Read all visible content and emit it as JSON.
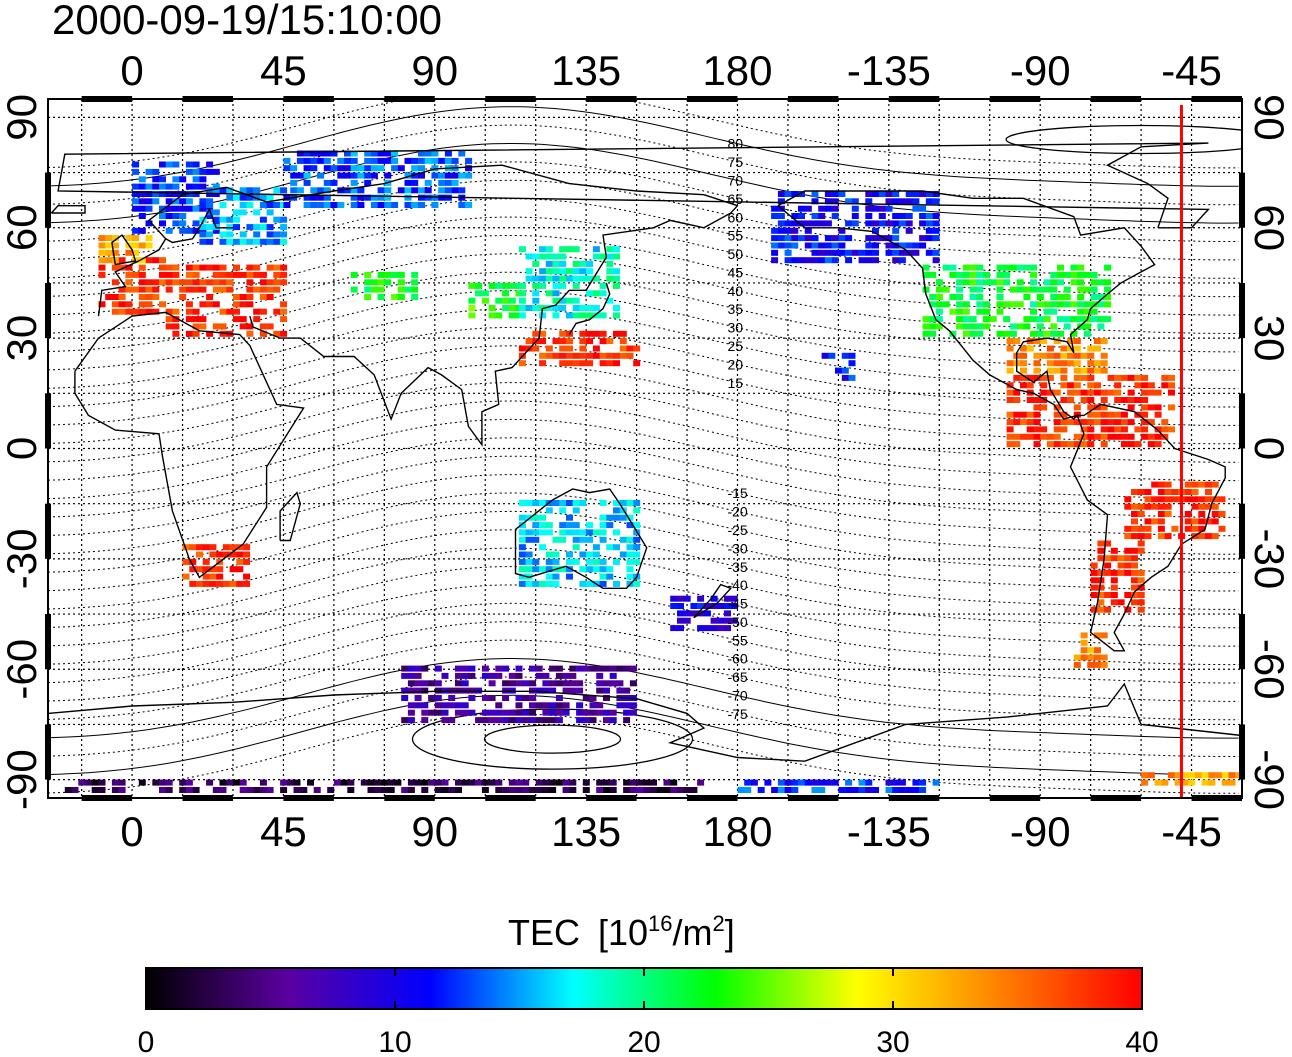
{
  "timestamp": "2000-09-19/15:10:00",
  "axes": {
    "lon_tick_labels": [
      "0",
      "45",
      "90",
      "135",
      "180",
      "-135",
      "-90",
      "-45"
    ],
    "lat_tick_labels": [
      "90",
      "60",
      "30",
      "0",
      "-30",
      "-60",
      "-90"
    ],
    "lon_range": [
      -25,
      330
    ],
    "lat_range": [
      -95,
      95
    ],
    "grid": true
  },
  "magnetic_latitude_labels": [
    "80",
    "75",
    "70",
    "65",
    "60",
    "55",
    "50",
    "45",
    "40",
    "35",
    "30",
    "25",
    "20",
    "15",
    "-15",
    "-20",
    "-25",
    "-30",
    "-35",
    "-40",
    "-45",
    "-50",
    "-55",
    "-60",
    "-65",
    "-70",
    "-75"
  ],
  "terminator_longitude": -48,
  "colorbar": {
    "title": "TEC",
    "unit_prefix": "[10",
    "unit_exp1": "16",
    "unit_mid": "/m",
    "unit_exp2": "2",
    "unit_suffix": "]",
    "min": 0,
    "max": 40,
    "tick_labels": [
      "0",
      "10",
      "20",
      "30",
      "40"
    ],
    "colors": [
      "#000000",
      "#5a00a0",
      "#0000ff",
      "#00ffff",
      "#00ff00",
      "#ffff00",
      "#ff8000",
      "#ff0000"
    ]
  },
  "chart_data": {
    "type": "heatmap",
    "title": "2000-09-19/15:10:00",
    "xlabel": "",
    "ylabel": "",
    "xlim": [
      -25,
      330
    ],
    "ylim": [
      -95,
      95
    ],
    "colorbar_label": "TEC [10^16/m^2]",
    "series": [
      {
        "lon": [
          -10,
          10
        ],
        "lat": [
          36,
          52
        ],
        "tec": 38
      },
      {
        "lon": [
          10,
          45
        ],
        "lat": [
          30,
          50
        ],
        "tec": 38
      },
      {
        "lon": [
          -10,
          5
        ],
        "lat": [
          50,
          58
        ],
        "tec": 33
      },
      {
        "lon": [
          0,
          25
        ],
        "lat": [
          58,
          78
        ],
        "tec": 12
      },
      {
        "lon": [
          20,
          45
        ],
        "lat": [
          55,
          70
        ],
        "tec": 15
      },
      {
        "lon": [
          45,
          100
        ],
        "lat": [
          65,
          80
        ],
        "tec": 13
      },
      {
        "lon": [
          65,
          85
        ],
        "lat": [
          40,
          48
        ],
        "tec": 23
      },
      {
        "lon": [
          100,
          115
        ],
        "lat": [
          35,
          45
        ],
        "tec": 23
      },
      {
        "lon": [
          115,
          145
        ],
        "lat": [
          35,
          55
        ],
        "tec": 18
      },
      {
        "lon": [
          115,
          150
        ],
        "lat": [
          22,
          32
        ],
        "tec": 38
      },
      {
        "lon": [
          190,
          240
        ],
        "lat": [
          50,
          70
        ],
        "tec": 11
      },
      {
        "lon": [
          235,
          290
        ],
        "lat": [
          30,
          50
        ],
        "tec": 22
      },
      {
        "lon": [
          260,
          290
        ],
        "lat": [
          20,
          30
        ],
        "tec": 34
      },
      {
        "lon": [
          260,
          310
        ],
        "lat": [
          0,
          20
        ],
        "tec": 38
      },
      {
        "lon": [
          295,
          325
        ],
        "lat": [
          -25,
          -10
        ],
        "tec": 38
      },
      {
        "lon": [
          285,
          300
        ],
        "lat": [
          -45,
          -25
        ],
        "tec": 38
      },
      {
        "lon": [
          280,
          290
        ],
        "lat": [
          -60,
          -50
        ],
        "tec": 34
      },
      {
        "lon": [
          15,
          35
        ],
        "lat": [
          -38,
          -27
        ],
        "tec": 38
      },
      {
        "lon": [
          115,
          150
        ],
        "lat": [
          -38,
          -15
        ],
        "tec": 16
      },
      {
        "lon": [
          160,
          180
        ],
        "lat": [
          -50,
          -40
        ],
        "tec": 10
      },
      {
        "lon": [
          205,
          215
        ],
        "lat": [
          18,
          25
        ],
        "tec": 11
      },
      {
        "lon": [
          80,
          150
        ],
        "lat": [
          -75,
          -60
        ],
        "tec": 6
      },
      {
        "lon": [
          -20,
          170
        ],
        "lat": [
          -94,
          -91
        ],
        "tec": 3
      },
      {
        "lon": [
          180,
          240
        ],
        "lat": [
          -94,
          -91
        ],
        "tec": 12
      },
      {
        "lon": [
          300,
          330
        ],
        "lat": [
          -92,
          -89
        ],
        "tec": 33
      }
    ]
  }
}
